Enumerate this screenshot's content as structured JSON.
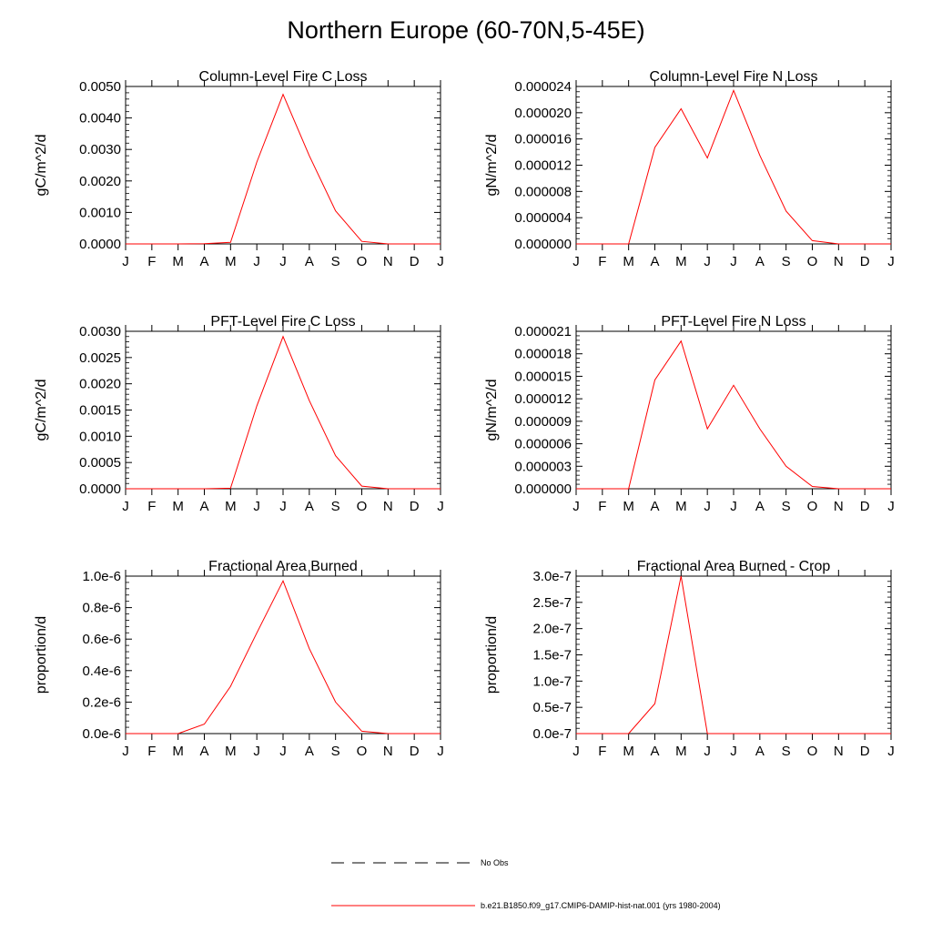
{
  "page": {
    "title": "Northern Europe (60-70N,5-45E)"
  },
  "legend": [
    {
      "label": "No Obs",
      "style": "dashed",
      "color": "#000000"
    },
    {
      "label": "b.e21.B1850.f09_g17.CMIP6-DAMIP-hist-nat.001 (yrs 1980-2004)",
      "style": "solid",
      "color": "#ff0000"
    }
  ],
  "colors": {
    "series": "#ff0000",
    "axis": "#000000"
  },
  "chart_data": [
    {
      "type": "line",
      "title": "Column-Level Fire C Loss",
      "ylabel": "gC/m^2/d",
      "xlabel": "",
      "categories": [
        "J",
        "F",
        "M",
        "A",
        "M",
        "J",
        "J",
        "A",
        "S",
        "O",
        "N",
        "D",
        "J"
      ],
      "yticks": [
        "0.0000",
        "0.0010",
        "0.0020",
        "0.0030",
        "0.0040",
        "0.0050"
      ],
      "ylim": [
        0,
        0.005
      ],
      "values": [
        0,
        0,
        0,
        1e-05,
        5e-05,
        0.0026,
        0.00475,
        0.0028,
        0.00105,
        8e-05,
        0,
        0,
        0
      ]
    },
    {
      "type": "line",
      "title": "Column-Level Fire N Loss",
      "ylabel": "gN/m^2/d",
      "xlabel": "",
      "categories": [
        "J",
        "F",
        "M",
        "A",
        "M",
        "J",
        "J",
        "A",
        "S",
        "O",
        "N",
        "D",
        "J"
      ],
      "yticks": [
        "0.000000",
        "0.000004",
        "0.000008",
        "0.000012",
        "0.000016",
        "0.000020",
        "0.000024"
      ],
      "ylim": [
        0,
        2.4e-05
      ],
      "values": [
        0,
        0,
        0,
        1.47e-05,
        2.06e-05,
        1.31e-05,
        2.34e-05,
        1.35e-05,
        5e-06,
        5e-07,
        0,
        0,
        0
      ]
    },
    {
      "type": "line",
      "title": "PFT-Level Fire C Loss",
      "ylabel": "gC/m^2/d",
      "xlabel": "",
      "categories": [
        "J",
        "F",
        "M",
        "A",
        "M",
        "J",
        "J",
        "A",
        "S",
        "O",
        "N",
        "D",
        "J"
      ],
      "yticks": [
        "0.0000",
        "0.0005",
        "0.0010",
        "0.0015",
        "0.0020",
        "0.0025",
        "0.0030"
      ],
      "ylim": [
        0,
        0.003
      ],
      "values": [
        0,
        0,
        0,
        0,
        1e-05,
        0.00158,
        0.0029,
        0.00168,
        0.00063,
        5e-05,
        0,
        0,
        0
      ]
    },
    {
      "type": "line",
      "title": "PFT-Level Fire N Loss",
      "ylabel": "gN/m^2/d",
      "xlabel": "",
      "categories": [
        "J",
        "F",
        "M",
        "A",
        "M",
        "J",
        "J",
        "A",
        "S",
        "O",
        "N",
        "D",
        "J"
      ],
      "yticks": [
        "0.000000",
        "0.000003",
        "0.000006",
        "0.000009",
        "0.000012",
        "0.000015",
        "0.000018",
        "0.000021"
      ],
      "ylim": [
        0,
        2.1e-05
      ],
      "values": [
        0,
        0,
        0,
        1.45e-05,
        1.97e-05,
        8e-06,
        1.38e-05,
        8e-06,
        3e-06,
        3e-07,
        0,
        0,
        0
      ]
    },
    {
      "type": "line",
      "title": "Fractional Area Burned",
      "ylabel": "proportion/d",
      "xlabel": "",
      "categories": [
        "J",
        "F",
        "M",
        "A",
        "M",
        "J",
        "J",
        "A",
        "S",
        "O",
        "N",
        "D",
        "J"
      ],
      "yticks": [
        "0.0e-6",
        "0.2e-6",
        "0.4e-6",
        "0.6e-6",
        "0.8e-6",
        "1.0e-6"
      ],
      "ylim": [
        0,
        1e-06
      ],
      "values": [
        0,
        0,
        0,
        6e-08,
        3e-07,
        6.4e-07,
        9.7e-07,
        5.4e-07,
        2e-07,
        1.5e-08,
        0,
        0,
        0
      ]
    },
    {
      "type": "line",
      "title": "Fractional Area Burned - Crop",
      "ylabel": "proportion/d",
      "xlabel": "",
      "categories": [
        "J",
        "F",
        "M",
        "A",
        "M",
        "J",
        "J",
        "A",
        "S",
        "O",
        "N",
        "D",
        "J"
      ],
      "yticks": [
        "0.0e-7",
        "0.5e-7",
        "1.0e-7",
        "1.5e-7",
        "2.0e-7",
        "2.5e-7",
        "3.0e-7"
      ],
      "ylim": [
        0,
        3e-07
      ],
      "values": [
        0,
        0,
        0,
        5.7e-08,
        3e-07,
        0,
        0,
        0,
        0,
        0,
        0,
        0,
        0
      ]
    }
  ]
}
